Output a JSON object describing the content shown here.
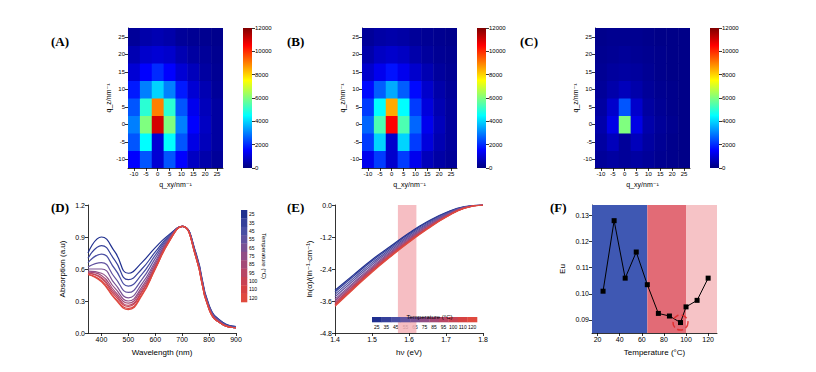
{
  "chart_data": [
    {
      "type": "heatmap",
      "title": "(A)",
      "x_label": "q_xy/nm⁻¹",
      "y_label": "q_z/nm⁻¹",
      "xlim": [
        -12.5,
        27.5
      ],
      "ylim": [
        -12.5,
        27.5
      ],
      "xticks": [
        -10,
        -5,
        0,
        5,
        10,
        15,
        20,
        25
      ],
      "yticks": [
        -10,
        -5,
        0,
        5,
        10,
        15,
        20,
        25
      ],
      "x": [
        -10,
        -5,
        0,
        5,
        10,
        15,
        20,
        25
      ],
      "y": [
        -10,
        -5,
        0,
        5,
        10,
        15,
        20,
        25
      ],
      "cells": [
        [
          1500,
          2500,
          1000,
          2500,
          1500,
          800,
          500,
          300
        ],
        [
          2500,
          4500,
          1000,
          4500,
          2500,
          1200,
          700,
          400
        ],
        [
          3000,
          6000,
          11000,
          6000,
          3000,
          1500,
          800,
          400
        ],
        [
          2500,
          5000,
          9000,
          5000,
          2500,
          1300,
          700,
          400
        ],
        [
          1800,
          3000,
          4000,
          3000,
          1800,
          1000,
          600,
          300
        ],
        [
          1000,
          1500,
          2000,
          1500,
          1000,
          700,
          400,
          250
        ],
        [
          600,
          900,
          1000,
          900,
          600,
          400,
          300,
          200
        ],
        [
          300,
          500,
          600,
          500,
          300,
          250,
          200,
          150
        ]
      ],
      "colorbar": {
        "range": [
          0,
          12000
        ],
        "ticks": [
          0,
          2000,
          4000,
          6000,
          8000,
          10000,
          12000
        ]
      }
    },
    {
      "type": "heatmap",
      "title": "(B)",
      "x_label": "q_xy/nm⁻¹",
      "y_label": "q_z/nm⁻¹",
      "xlim": [
        -12.5,
        27.5
      ],
      "ylim": [
        -12.5,
        27.5
      ],
      "xticks": [
        -10,
        -5,
        0,
        5,
        10,
        15,
        20,
        25
      ],
      "yticks": [
        -10,
        -5,
        0,
        5,
        10,
        15,
        20,
        25
      ],
      "x": [
        -10,
        -5,
        0,
        5,
        10,
        15,
        20,
        25
      ],
      "y": [
        -10,
        -5,
        0,
        5,
        10,
        15,
        20,
        25
      ],
      "cells": [
        [
          1300,
          2200,
          900,
          2200,
          1300,
          700,
          450,
          300
        ],
        [
          2200,
          4000,
          900,
          4000,
          2200,
          1100,
          600,
          350
        ],
        [
          2700,
          5400,
          10500,
          5400,
          2700,
          1300,
          700,
          350
        ],
        [
          2200,
          4500,
          8500,
          4500,
          2200,
          1100,
          600,
          350
        ],
        [
          1600,
          2600,
          3500,
          2600,
          1600,
          900,
          500,
          300
        ],
        [
          900,
          1300,
          1700,
          1300,
          900,
          600,
          350,
          250
        ],
        [
          500,
          800,
          900,
          800,
          500,
          350,
          250,
          200
        ],
        [
          300,
          450,
          500,
          450,
          300,
          250,
          200,
          150
        ]
      ],
      "colorbar": {
        "range": [
          0,
          12000
        ],
        "ticks": [
          0,
          2000,
          4000,
          6000,
          8000,
          10000,
          12000
        ]
      }
    },
    {
      "type": "heatmap",
      "title": "(C)",
      "x_label": "q_xy/nm⁻¹",
      "y_label": "q_z/nm⁻¹",
      "xlim": [
        -12.5,
        27.5
      ],
      "ylim": [
        -12.5,
        27.5
      ],
      "xticks": [
        -10,
        -5,
        0,
        5,
        10,
        15,
        20,
        25
      ],
      "yticks": [
        -10,
        -5,
        0,
        5,
        10,
        15,
        20,
        25
      ],
      "x": [
        -10,
        -5,
        0,
        5,
        10,
        15,
        20,
        25
      ],
      "y": [
        -10,
        -5,
        0,
        5,
        10,
        15,
        20,
        25
      ],
      "cells": [
        [
          300,
          400,
          300,
          400,
          300,
          200,
          150,
          100
        ],
        [
          400,
          700,
          300,
          700,
          400,
          250,
          150,
          100
        ],
        [
          500,
          1200,
          6000,
          1200,
          500,
          300,
          200,
          100
        ],
        [
          400,
          900,
          2500,
          900,
          400,
          250,
          150,
          100
        ],
        [
          300,
          500,
          700,
          500,
          300,
          200,
          150,
          100
        ],
        [
          250,
          350,
          400,
          350,
          250,
          150,
          100,
          100
        ],
        [
          200,
          250,
          300,
          250,
          200,
          150,
          100,
          100
        ],
        [
          150,
          200,
          200,
          200,
          150,
          100,
          100,
          100
        ]
      ],
      "colorbar": {
        "range": [
          0,
          12000
        ],
        "ticks": [
          0,
          2000,
          4000,
          6000,
          8000,
          10000,
          12000
        ]
      }
    },
    {
      "type": "line",
      "title": "(D)",
      "x_label": "Wavelength (nm)",
      "y_label": "Absorption (a.u)",
      "xlim": [
        350,
        900
      ],
      "ylim": [
        0,
        1.2
      ],
      "xticks": [
        400,
        500,
        600,
        700,
        800,
        900
      ],
      "yticks": [
        {
          "value": 0,
          "label": "0.0"
        },
        0.3,
        0.6,
        0.9,
        1.2
      ],
      "x": [
        350,
        400,
        450,
        500,
        550,
        600,
        650,
        700,
        750,
        800,
        850,
        900
      ],
      "colorbar": {
        "title": "Temperature (°C)"
      },
      "series": [
        {
          "name": "25",
          "color": "#1f2f8f",
          "values": [
            0.75,
            0.9,
            0.76,
            0.56,
            0.66,
            0.8,
            0.92,
            1.0,
            0.76,
            0.26,
            0.1,
            0.06
          ]
        },
        {
          "name": "35",
          "color": "#35409a",
          "values": [
            0.7,
            0.82,
            0.68,
            0.5,
            0.6,
            0.76,
            0.91,
            1.0,
            0.75,
            0.25,
            0.1,
            0.06
          ]
        },
        {
          "name": "45",
          "color": "#4a4fa3",
          "values": [
            0.66,
            0.74,
            0.6,
            0.44,
            0.55,
            0.73,
            0.9,
            1.0,
            0.75,
            0.25,
            0.09,
            0.06
          ]
        },
        {
          "name": "55",
          "color": "#62539f",
          "values": [
            0.62,
            0.66,
            0.52,
            0.38,
            0.5,
            0.7,
            0.89,
            1.0,
            0.74,
            0.24,
            0.09,
            0.05
          ]
        },
        {
          "name": "65",
          "color": "#7a5294",
          "values": [
            0.6,
            0.6,
            0.46,
            0.33,
            0.46,
            0.67,
            0.88,
            1.0,
            0.74,
            0.24,
            0.09,
            0.05
          ]
        },
        {
          "name": "75",
          "color": "#904e86",
          "values": [
            0.58,
            0.56,
            0.42,
            0.3,
            0.43,
            0.65,
            0.87,
            1.0,
            0.73,
            0.23,
            0.08,
            0.05
          ]
        },
        {
          "name": "85",
          "color": "#a44a76",
          "values": [
            0.57,
            0.54,
            0.39,
            0.28,
            0.41,
            0.63,
            0.87,
            1.0,
            0.73,
            0.23,
            0.08,
            0.05
          ]
        },
        {
          "name": "95",
          "color": "#b84664",
          "values": [
            0.56,
            0.52,
            0.37,
            0.26,
            0.39,
            0.62,
            0.86,
            1.0,
            0.73,
            0.23,
            0.08,
            0.05
          ]
        },
        {
          "name": "100",
          "color": "#c84352",
          "values": [
            0.56,
            0.51,
            0.35,
            0.25,
            0.38,
            0.61,
            0.86,
            1.0,
            0.72,
            0.22,
            0.08,
            0.05
          ]
        },
        {
          "name": "110",
          "color": "#d64242",
          "values": [
            0.55,
            0.49,
            0.33,
            0.23,
            0.36,
            0.6,
            0.85,
            1.0,
            0.72,
            0.22,
            0.08,
            0.05
          ]
        },
        {
          "name": "120",
          "color": "#e04a3e",
          "values": [
            0.55,
            0.48,
            0.32,
            0.22,
            0.35,
            0.6,
            0.85,
            1.0,
            0.72,
            0.22,
            0.08,
            0.05
          ]
        }
      ]
    },
    {
      "type": "line",
      "title": "(E)",
      "x_label": "hν (eV)",
      "y_label": "ln(α)/(ln⁻¹·cm⁻¹)",
      "xlim": [
        1.4,
        1.8
      ],
      "ylim": [
        -4.8,
        0
      ],
      "xticks": [
        1.4,
        1.5,
        1.6,
        1.7,
        1.8
      ],
      "yticks": [
        -4.8,
        -3.6,
        -2.4,
        -1.2,
        {
          "value": 0,
          "label": "0.0"
        }
      ],
      "x": [
        1.4,
        1.45,
        1.5,
        1.55,
        1.6,
        1.65,
        1.7,
        1.75,
        1.8
      ],
      "band": {
        "x": [
          1.57,
          1.62
        ],
        "color": "#f4b3b8"
      },
      "colorbar": {
        "title": "Temperature (°C)"
      },
      "series": [
        {
          "name": "25",
          "color": "#1f2f8f",
          "values": [
            -3.2,
            -2.62,
            -2.05,
            -1.55,
            -1.05,
            -0.62,
            -0.28,
            -0.06,
            0.0
          ]
        },
        {
          "name": "35",
          "color": "#35409a",
          "values": [
            -3.26,
            -2.67,
            -2.1,
            -1.59,
            -1.09,
            -0.65,
            -0.3,
            -0.07,
            0.0
          ]
        },
        {
          "name": "45",
          "color": "#4a4fa3",
          "values": [
            -3.35,
            -2.75,
            -2.17,
            -1.65,
            -1.14,
            -0.69,
            -0.33,
            -0.08,
            0.0
          ]
        },
        {
          "name": "55",
          "color": "#62539f",
          "values": [
            -3.44,
            -2.83,
            -2.24,
            -1.71,
            -1.19,
            -0.73,
            -0.35,
            -0.08,
            0.0
          ]
        },
        {
          "name": "65",
          "color": "#7a5294",
          "values": [
            -3.53,
            -2.91,
            -2.31,
            -1.76,
            -1.24,
            -0.77,
            -0.38,
            -0.09,
            0.0
          ]
        },
        {
          "name": "75",
          "color": "#904e86",
          "values": [
            -3.59,
            -2.96,
            -2.36,
            -1.8,
            -1.28,
            -0.8,
            -0.4,
            -0.1,
            0.0
          ]
        },
        {
          "name": "85",
          "color": "#a44a76",
          "values": [
            -3.65,
            -3.02,
            -2.4,
            -1.84,
            -1.31,
            -0.83,
            -0.42,
            -0.11,
            0.0
          ]
        },
        {
          "name": "95",
          "color": "#b84664",
          "values": [
            -3.69,
            -3.05,
            -2.44,
            -1.87,
            -1.34,
            -0.85,
            -0.43,
            -0.11,
            0.0
          ]
        },
        {
          "name": "100",
          "color": "#c84352",
          "values": [
            -3.73,
            -3.09,
            -2.46,
            -1.89,
            -1.36,
            -0.87,
            -0.44,
            -0.11,
            0.0
          ]
        },
        {
          "name": "110",
          "color": "#d64242",
          "values": [
            -3.76,
            -3.12,
            -2.49,
            -1.92,
            -1.38,
            -0.88,
            -0.45,
            -0.12,
            0.0
          ]
        },
        {
          "name": "120",
          "color": "#e04a3e",
          "values": [
            -3.8,
            -3.15,
            -2.52,
            -1.94,
            -1.4,
            -0.9,
            -0.46,
            -0.12,
            0.0
          ]
        }
      ]
    },
    {
      "type": "line",
      "title": "(F)",
      "x_label": "Temperature (°C)",
      "y_label": "Eu",
      "xlim": [
        15,
        128
      ],
      "ylim": [
        0.085,
        0.134
      ],
      "xticks": [
        20,
        40,
        60,
        80,
        100,
        120
      ],
      "yticks": [
        0.09,
        {
          "value": 0.1,
          "label": "0.10"
        },
        0.11,
        0.12,
        0.13
      ],
      "x": [
        25,
        35,
        45,
        55,
        65,
        75,
        85,
        95,
        100,
        110,
        120
      ],
      "values": [
        0.101,
        0.128,
        0.106,
        0.116,
        0.1035,
        0.0925,
        0.0915,
        0.089,
        0.095,
        0.0975,
        0.106
      ],
      "color": "#000000",
      "marker": "square",
      "regions": [
        {
          "x": [
            15,
            65
          ],
          "color": "#3f58b3"
        },
        {
          "x": [
            65,
            100
          ],
          "color": "#e26b76"
        },
        {
          "x": [
            100,
            128
          ],
          "color": "#f6c3c6"
        }
      ],
      "highlight": {
        "x": 95,
        "y": 0.089,
        "color": "#e0201e",
        "line_style": "dashed"
      }
    }
  ]
}
